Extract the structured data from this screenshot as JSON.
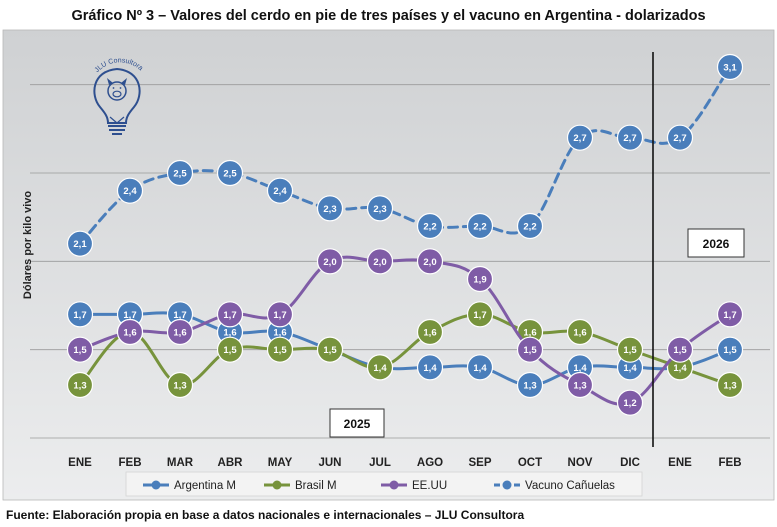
{
  "chart_data": {
    "type": "line",
    "title": "Gráfico Nº 3 – Valores del cerdo en pie de tres países y el vacuno en Argentina - dolarizados",
    "ylabel": "Dólares por kilo vivo",
    "xlabel": "",
    "categories": [
      "ENE",
      "FEB",
      "MAR",
      "ABR",
      "MAY",
      "JUN",
      "JUL",
      "AGO",
      "SEP",
      "OCT",
      "NOV",
      "DIC",
      "ENE",
      "FEB"
    ],
    "ylim": [
      0.9,
      3.3
    ],
    "grid": true,
    "legend_position": "bottom",
    "year_labels": [
      "2025",
      "2026"
    ],
    "series": [
      {
        "name": "Argentina M",
        "color": "#4a7ebb",
        "style": "solid",
        "values": [
          1.7,
          1.7,
          1.7,
          1.6,
          1.6,
          1.5,
          1.4,
          1.4,
          1.4,
          1.3,
          1.4,
          1.4,
          1.4,
          1.5
        ],
        "labels": [
          "1,7",
          "1,7",
          "1,7",
          "1,6",
          "1,6",
          "1,5",
          "1,4",
          "1,4",
          "1,4",
          "1,3",
          "1,4",
          "1,4",
          "1,4",
          "1,5"
        ]
      },
      {
        "name": "Brasil M",
        "color": "#77933c",
        "style": "solid",
        "values": [
          1.3,
          1.6,
          1.3,
          1.5,
          1.5,
          1.5,
          1.4,
          1.6,
          1.7,
          1.6,
          1.6,
          1.5,
          1.4,
          1.3
        ],
        "labels": [
          "1,3",
          "1,6",
          "1,3",
          "1,5",
          "1,5",
          "1,5",
          "1,4",
          "1,6",
          "1,7",
          "1,6",
          "1,6",
          "1,5",
          "1,4",
          "1,3"
        ]
      },
      {
        "name": "EE.UU",
        "color": "#7f5ca6",
        "style": "solid",
        "values": [
          1.5,
          1.6,
          1.6,
          1.7,
          1.7,
          2.0,
          2.0,
          2.0,
          1.9,
          1.5,
          1.3,
          1.2,
          1.5,
          1.7
        ],
        "labels": [
          "1,5",
          "1,6",
          "1,6",
          "1,7",
          "1,7",
          "2,0",
          "2,0",
          "2,0",
          "1,9",
          "1,5",
          "1,3",
          "1,2",
          "1,5",
          "1,7"
        ]
      },
      {
        "name": "Vacuno Cañuelas",
        "color": "#4a7ebb",
        "style": "dashed",
        "values": [
          2.1,
          2.4,
          2.5,
          2.5,
          2.4,
          2.3,
          2.3,
          2.2,
          2.2,
          2.2,
          2.7,
          2.7,
          2.7,
          3.1
        ],
        "labels": [
          "2,1",
          "2,4",
          "2,5",
          "2,5",
          "2,4",
          "2,3",
          "2,3",
          "2,2",
          "2,2",
          "2,2",
          "2,7",
          "2,7",
          "2,7",
          "3,1"
        ]
      }
    ]
  },
  "logo_text": "JLU Consultora",
  "source_note": "Fuente: Elaboración propia en base a datos nacionales e internacionales – JLU Consultora"
}
